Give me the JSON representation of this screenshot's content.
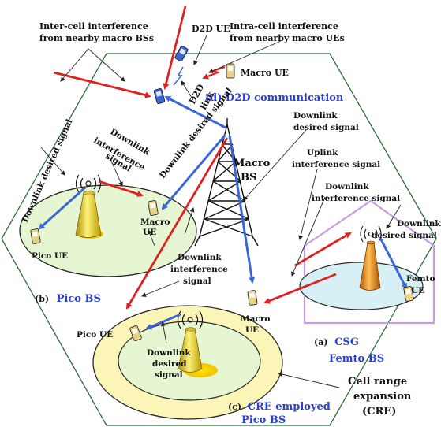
{
  "labels": {
    "inter_cell_1": "Inter-cell interference",
    "inter_cell_2": "from nearby macro BSs",
    "intra_cell_1": "Intra-cell interference",
    "intra_cell_2": "from nearby macro UEs",
    "d2d_ue": "D2D UE",
    "macro_ue_top": "Macro UE",
    "d2d_link_1": "D2D",
    "d2d_link_2": "link",
    "d2d_comm": "(d) D2D communication",
    "dl_desired_top_1": "Downlink",
    "dl_desired_top_2": "desired signal",
    "macro_bs_1": "Macro",
    "macro_bs_2": "BS",
    "uplink_if_1": "Uplink",
    "uplink_if_2": "interference signal",
    "dl_if_right_1": "Downlink",
    "dl_if_right_2": "interference signal",
    "dl_desired_right_1": "Downlink",
    "dl_desired_right_2": "desired signal",
    "femto_ue_1": "Femto",
    "femto_ue_2": "UE",
    "dl_desired_left": "Downlink desired signal",
    "dl_if_left_1": "Downlink",
    "dl_if_left_2": "interference",
    "dl_if_left_3": "signal",
    "dl_desired_diag": "Downlink desired signal",
    "macro_ue_left_1": "Macro",
    "macro_ue_left_2": "UE",
    "pico_ue_left": "Pico  UE",
    "pico_bs_prefix": "(b)",
    "pico_bs": "Pico BS",
    "dl_if_mid_1": "Downlink",
    "dl_if_mid_2": "interference",
    "dl_if_mid_3": "signal",
    "macro_ue_mid_1": "Macro",
    "macro_ue_mid_2": "UE",
    "csg_prefix": "(a)",
    "csg_1": "CSG",
    "csg_2": "Femto BS",
    "pico_ue_bottom": "Pico  UE",
    "dl_desired_bottom_1": "Downlink",
    "dl_desired_bottom_2": "desired",
    "dl_desired_bottom_3": "signal",
    "cre_label_1": "Cell range",
    "cre_label_2": "expansion",
    "cre_label_3": "(CRE)",
    "cre_prefix": "(c)",
    "cre_1": "CRE employed",
    "cre_2": "Pico BS"
  },
  "colors": {
    "red": "#e02020",
    "blue": "#3a66d8",
    "label_blue": "#2a3fd6",
    "hexagon": "#2f6b3a",
    "pico_cell": "#e6f6d2",
    "cre_outer": "#fbf6b8",
    "femto_fill": "#d6f0f6",
    "house": "#c79be6"
  }
}
